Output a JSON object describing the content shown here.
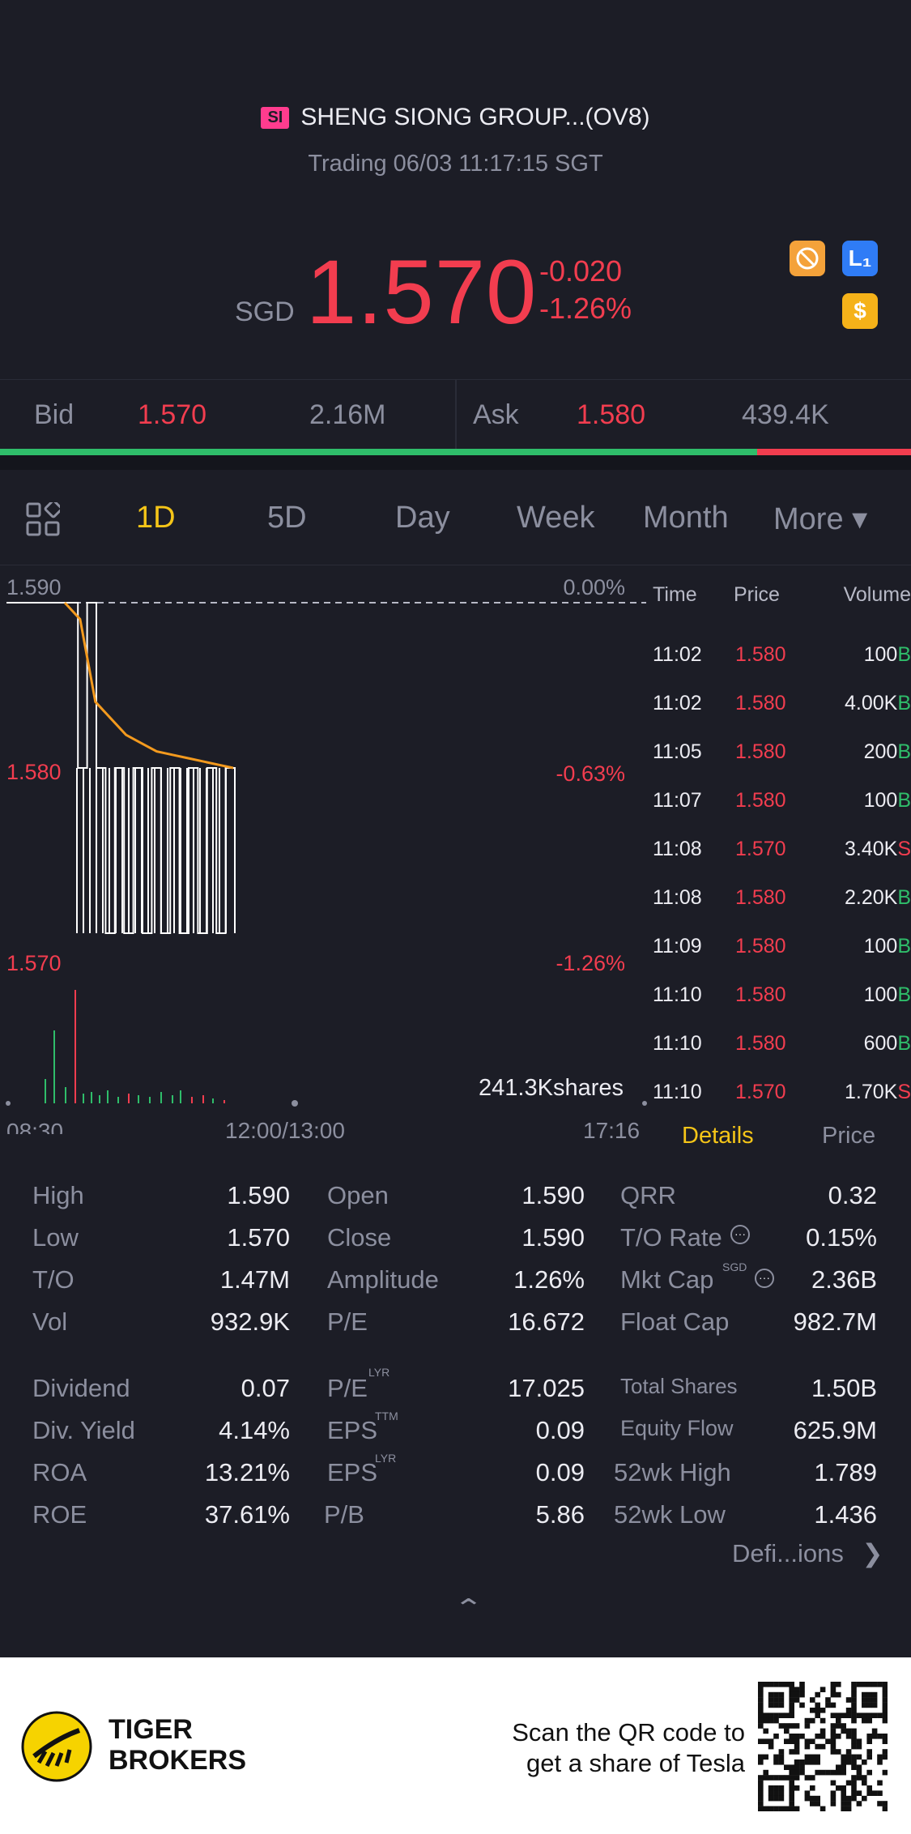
{
  "header": {
    "exchange_badge": "SI",
    "title": "SHENG SIONG GROUP...(OV8)",
    "subtitle": "Trading 06/03 11:17:15 SGT",
    "currency": "SGD",
    "price": "1.570",
    "change": "-0.020",
    "change_pct": "-1.26%",
    "icons": [
      "no-delay-icon",
      "level1-icon",
      "dollar-icon"
    ],
    "icon_l1_label": "L₁",
    "icon_dollar_label": "$"
  },
  "bidask": {
    "bid_label": "Bid",
    "bid_price": "1.570",
    "bid_size": "2.16M",
    "ask_label": "Ask",
    "ask_price": "1.580",
    "ask_size": "439.4K",
    "bid_share": 0.83
  },
  "tabs": [
    "1D",
    "5D",
    "Day",
    "Week",
    "Month",
    "More ▾"
  ],
  "active_tab": "1D",
  "chart": {
    "y_top": "1.590",
    "y_mid": "1.580",
    "y_bot": "1.570",
    "pct_top": "0.00%",
    "pct_mid": "-0.63%",
    "pct_bot": "-1.26%",
    "volume_label": "241.3Kshares",
    "x_labels": [
      "08:30",
      "12:00/13:00",
      "17:16"
    ]
  },
  "chart_data": {
    "type": "line",
    "ylim": [
      1.57,
      1.59
    ],
    "reference_close": 1.59,
    "series": [
      {
        "values": [
          1.59,
          1.59,
          1.59,
          1.58,
          1.59,
          1.58,
          1.57,
          1.58,
          1.57,
          1.58,
          1.57,
          1.58,
          1.57,
          1.58,
          1.57,
          1.58,
          1.57,
          1.58,
          1.57,
          1.58,
          1.57
        ]
      },
      {
        "values": [
          1.59,
          1.589,
          1.584,
          1.583,
          1.582,
          1.5815,
          1.581,
          1.5808,
          1.5806,
          1.5804,
          1.5802,
          1.58
        ]
      }
    ]
  },
  "trades": {
    "headers": [
      "Time",
      "Price",
      "Volume"
    ],
    "rows": [
      {
        "time": "11:02",
        "price": "1.580",
        "vol": "100",
        "side": "B"
      },
      {
        "time": "11:02",
        "price": "1.580",
        "vol": "4.00K",
        "side": "B"
      },
      {
        "time": "11:05",
        "price": "1.580",
        "vol": "200",
        "side": "B"
      },
      {
        "time": "11:07",
        "price": "1.580",
        "vol": "100",
        "side": "B"
      },
      {
        "time": "11:08",
        "price": "1.570",
        "vol": "3.40K",
        "side": "S"
      },
      {
        "time": "11:08",
        "price": "1.580",
        "vol": "2.20K",
        "side": "B"
      },
      {
        "time": "11:09",
        "price": "1.580",
        "vol": "100",
        "side": "B"
      },
      {
        "time": "11:10",
        "price": "1.580",
        "vol": "100",
        "side": "B"
      },
      {
        "time": "11:10",
        "price": "1.580",
        "vol": "600",
        "side": "B"
      },
      {
        "time": "11:10",
        "price": "1.570",
        "vol": "1.70K",
        "side": "S"
      }
    ]
  },
  "detail_tabs": [
    "Details",
    "Price"
  ],
  "details": {
    "col1": [
      [
        "High",
        "1.590"
      ],
      [
        "Low",
        "1.570"
      ],
      [
        "T/O",
        "1.47M"
      ],
      [
        "Vol",
        "932.9K"
      ],
      [
        "Dividend",
        "0.07"
      ],
      [
        "Div. Yield",
        "4.14%"
      ],
      [
        "ROA",
        "13.21%"
      ],
      [
        "ROE",
        "37.61%"
      ]
    ],
    "col2": [
      [
        "Open",
        "1.590"
      ],
      [
        "Close",
        "1.590"
      ],
      [
        "Amplitude",
        "1.26%"
      ],
      [
        "P/E",
        "16.672"
      ],
      [
        "P/E",
        "17.025"
      ],
      [
        "EPS",
        "0.09"
      ],
      [
        "EPS",
        "0.09"
      ],
      [
        "P/B",
        "5.86"
      ]
    ],
    "col2_sups": [
      "LYR",
      "TTM",
      "LYR"
    ],
    "col3": [
      [
        "QRR",
        "0.32"
      ],
      [
        "T/O Rate",
        "0.15%"
      ],
      [
        "Mkt Cap",
        "2.36B"
      ],
      [
        "Float Cap",
        "982.7M"
      ],
      [
        "Total Shares",
        "1.50B"
      ],
      [
        "Equity Flow",
        "625.9M"
      ],
      [
        "52wk High",
        "1.789"
      ],
      [
        "52wk Low",
        "1.436"
      ]
    ],
    "mktcap_sup": "SGD",
    "definitions_link": "Defi...ions"
  },
  "footer": {
    "brand_line1": "TIGER",
    "brand_line2": "BROKERS",
    "promo_line1": "Scan the QR code to",
    "promo_line2": "get a share of Tesla"
  }
}
